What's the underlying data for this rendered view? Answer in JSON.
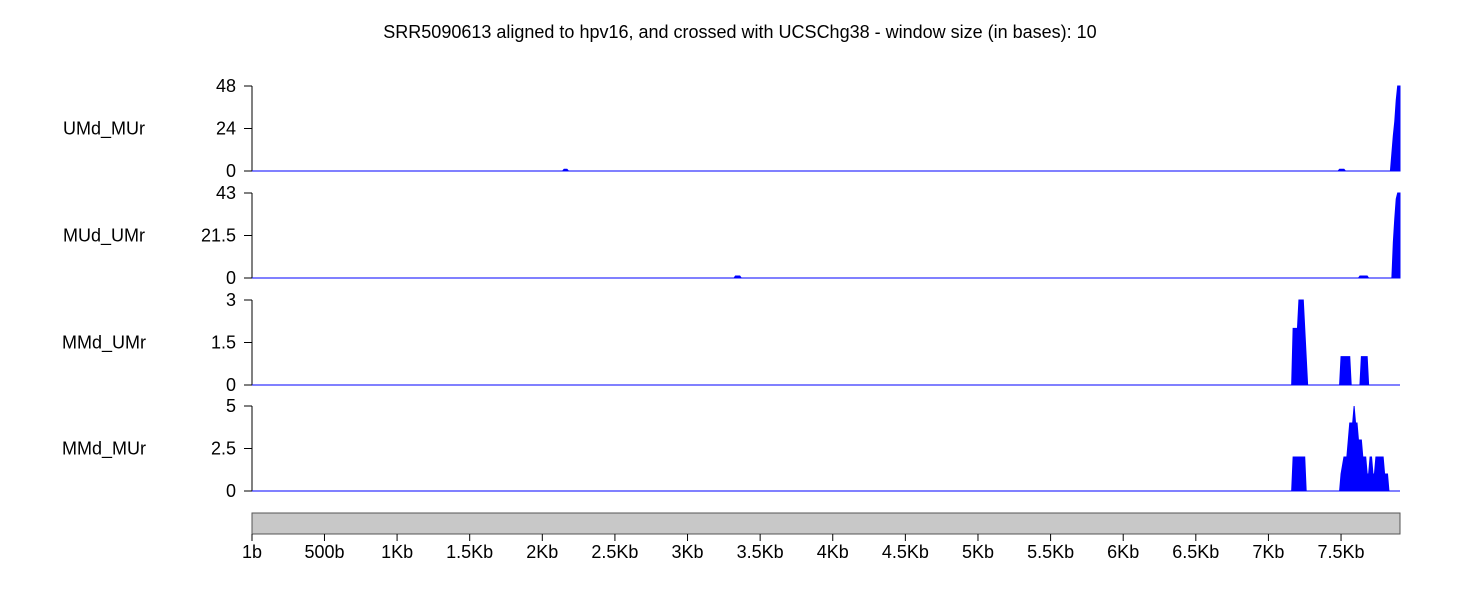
{
  "chart_data": {
    "type": "area",
    "title": "SRR5090613 aligned to hpv16, and crossed with UCSChg38 - window size (in bases):  10",
    "color": "#0000ff",
    "xlim": [
      1,
      7906
    ],
    "x_ticks": [
      {
        "pos": 1,
        "label": "1b"
      },
      {
        "pos": 500,
        "label": "500b"
      },
      {
        "pos": 1000,
        "label": "1Kb"
      },
      {
        "pos": 1500,
        "label": "1.5Kb"
      },
      {
        "pos": 2000,
        "label": "2Kb"
      },
      {
        "pos": 2500,
        "label": "2.5Kb"
      },
      {
        "pos": 3000,
        "label": "3Kb"
      },
      {
        "pos": 3500,
        "label": "3.5Kb"
      },
      {
        "pos": 4000,
        "label": "4Kb"
      },
      {
        "pos": 4500,
        "label": "4.5Kb"
      },
      {
        "pos": 5000,
        "label": "5Kb"
      },
      {
        "pos": 5500,
        "label": "5.5Kb"
      },
      {
        "pos": 6000,
        "label": "6Kb"
      },
      {
        "pos": 6500,
        "label": "6.5Kb"
      },
      {
        "pos": 7000,
        "label": "7Kb"
      },
      {
        "pos": 7500,
        "label": "7.5Kb"
      }
    ],
    "tracks": [
      {
        "name": "UMd_MUr",
        "ylim": [
          0,
          48
        ],
        "yticks": [
          "48",
          "24",
          "0"
        ],
        "points": [
          [
            1,
            0
          ],
          [
            2140,
            0
          ],
          [
            2150,
            1
          ],
          [
            2170,
            1
          ],
          [
            2180,
            0
          ],
          [
            7480,
            0
          ],
          [
            7490,
            1
          ],
          [
            7520,
            1
          ],
          [
            7530,
            0
          ],
          [
            7840,
            0
          ],
          [
            7850,
            10
          ],
          [
            7860,
            20
          ],
          [
            7870,
            28
          ],
          [
            7880,
            40
          ],
          [
            7890,
            48
          ],
          [
            7906,
            48
          ]
        ]
      },
      {
        "name": "MUd_UMr",
        "ylim": [
          0,
          43
        ],
        "yticks": [
          "43",
          "21.5",
          "0"
        ],
        "points": [
          [
            1,
            0
          ],
          [
            3320,
            0
          ],
          [
            3330,
            1
          ],
          [
            3360,
            1
          ],
          [
            3370,
            0
          ],
          [
            7620,
            0
          ],
          [
            7630,
            1
          ],
          [
            7680,
            1
          ],
          [
            7690,
            0
          ],
          [
            7850,
            0
          ],
          [
            7860,
            18
          ],
          [
            7870,
            30
          ],
          [
            7880,
            40
          ],
          [
            7890,
            43
          ],
          [
            7906,
            43
          ]
        ]
      },
      {
        "name": "MMd_UMr",
        "ylim": [
          0,
          3
        ],
        "yticks": [
          "3",
          "1.5",
          "0"
        ],
        "points": [
          [
            1,
            0
          ],
          [
            7160,
            0
          ],
          [
            7170,
            2
          ],
          [
            7200,
            2
          ],
          [
            7210,
            3
          ],
          [
            7240,
            3
          ],
          [
            7270,
            0
          ],
          [
            7490,
            0
          ],
          [
            7500,
            1
          ],
          [
            7560,
            1
          ],
          [
            7570,
            0
          ],
          [
            7630,
            0
          ],
          [
            7640,
            1
          ],
          [
            7680,
            1
          ],
          [
            7690,
            0
          ],
          [
            7906,
            0
          ]
        ]
      },
      {
        "name": "MMd_MUr",
        "ylim": [
          0,
          5
        ],
        "yticks": [
          "5",
          "2.5",
          "0"
        ],
        "points": [
          [
            1,
            0
          ],
          [
            7160,
            0
          ],
          [
            7170,
            2
          ],
          [
            7250,
            2
          ],
          [
            7260,
            0
          ],
          [
            7490,
            0
          ],
          [
            7500,
            1
          ],
          [
            7520,
            2
          ],
          [
            7540,
            2
          ],
          [
            7550,
            3
          ],
          [
            7560,
            4
          ],
          [
            7580,
            4
          ],
          [
            7590,
            5
          ],
          [
            7600,
            4
          ],
          [
            7610,
            4
          ],
          [
            7620,
            3
          ],
          [
            7640,
            3
          ],
          [
            7650,
            2
          ],
          [
            7670,
            2
          ],
          [
            7680,
            1
          ],
          [
            7690,
            1
          ],
          [
            7700,
            2
          ],
          [
            7710,
            2
          ],
          [
            7720,
            1
          ],
          [
            7730,
            1
          ],
          [
            7740,
            2
          ],
          [
            7790,
            2
          ],
          [
            7800,
            1
          ],
          [
            7820,
            1
          ],
          [
            7830,
            0
          ],
          [
            7906,
            0
          ]
        ]
      }
    ]
  }
}
